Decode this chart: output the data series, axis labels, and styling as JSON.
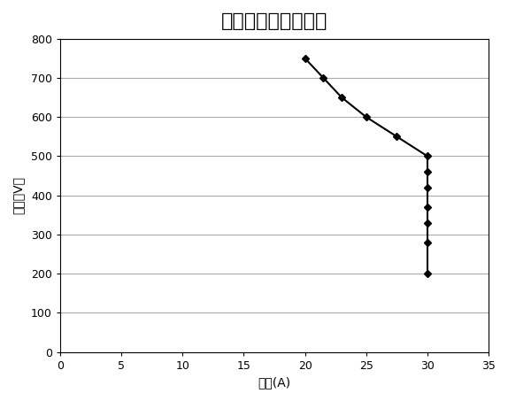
{
  "title": "充电模块恒功率曲线",
  "xlabel": "电流(A)",
  "ylabel": "电压（V）",
  "xlim": [
    0,
    35
  ],
  "ylim": [
    0,
    800
  ],
  "xticks": [
    0,
    5,
    10,
    15,
    20,
    25,
    30,
    35
  ],
  "yticks": [
    0,
    100,
    200,
    300,
    400,
    500,
    600,
    700,
    800
  ],
  "diagonal_x": [
    20,
    21.5,
    23,
    25,
    27.5,
    30
  ],
  "diagonal_y": [
    750,
    700,
    650,
    600,
    550,
    500
  ],
  "vertical_x": [
    30,
    30,
    30,
    30,
    30,
    30
  ],
  "vertical_y": [
    460,
    420,
    370,
    330,
    280,
    200
  ],
  "line_color": "#000000",
  "marker": "D",
  "marker_size": 4,
  "line_width": 1.5,
  "grid": true,
  "grid_color": "#aaaaaa",
  "background_color": "#ffffff",
  "title_fontsize": 16,
  "label_fontsize": 10
}
